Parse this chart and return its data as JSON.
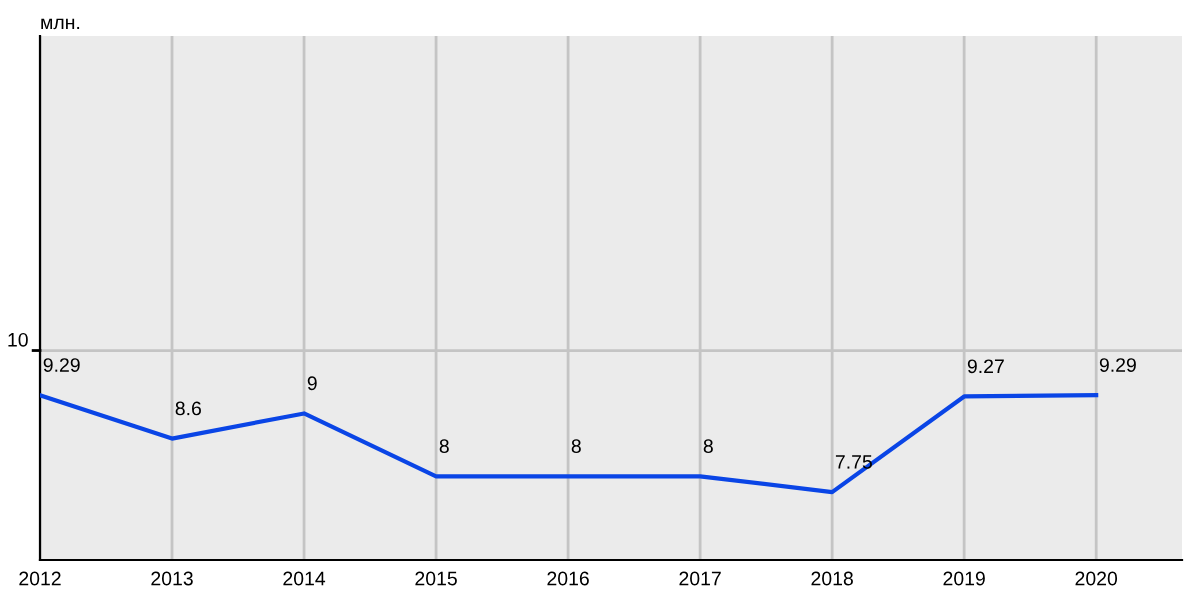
{
  "chart_data": {
    "type": "line",
    "ylabel": "млн.",
    "x": [
      2012,
      2013,
      2014,
      2015,
      2016,
      2017,
      2018,
      2019,
      2020
    ],
    "series": [
      {
        "color": "#0a45e6",
        "values": [
          9.29,
          8.6,
          9,
          8,
          8,
          8,
          7.75,
          9.27,
          9.29
        ]
      }
    ],
    "xlim": [
      2012,
      2020.65
    ],
    "xticks": [
      2012,
      2013,
      2014,
      2015,
      2016,
      2017,
      2018,
      2019,
      2020
    ],
    "ylim": [
      6.67,
      15
    ],
    "ref_lines": [
      {
        "axis": "y",
        "value": 10,
        "label": "10",
        "color": "#c4c4c4"
      }
    ],
    "grid": "x",
    "data_labels": true,
    "marker": "none",
    "line_style": "solid",
    "legend": false
  }
}
